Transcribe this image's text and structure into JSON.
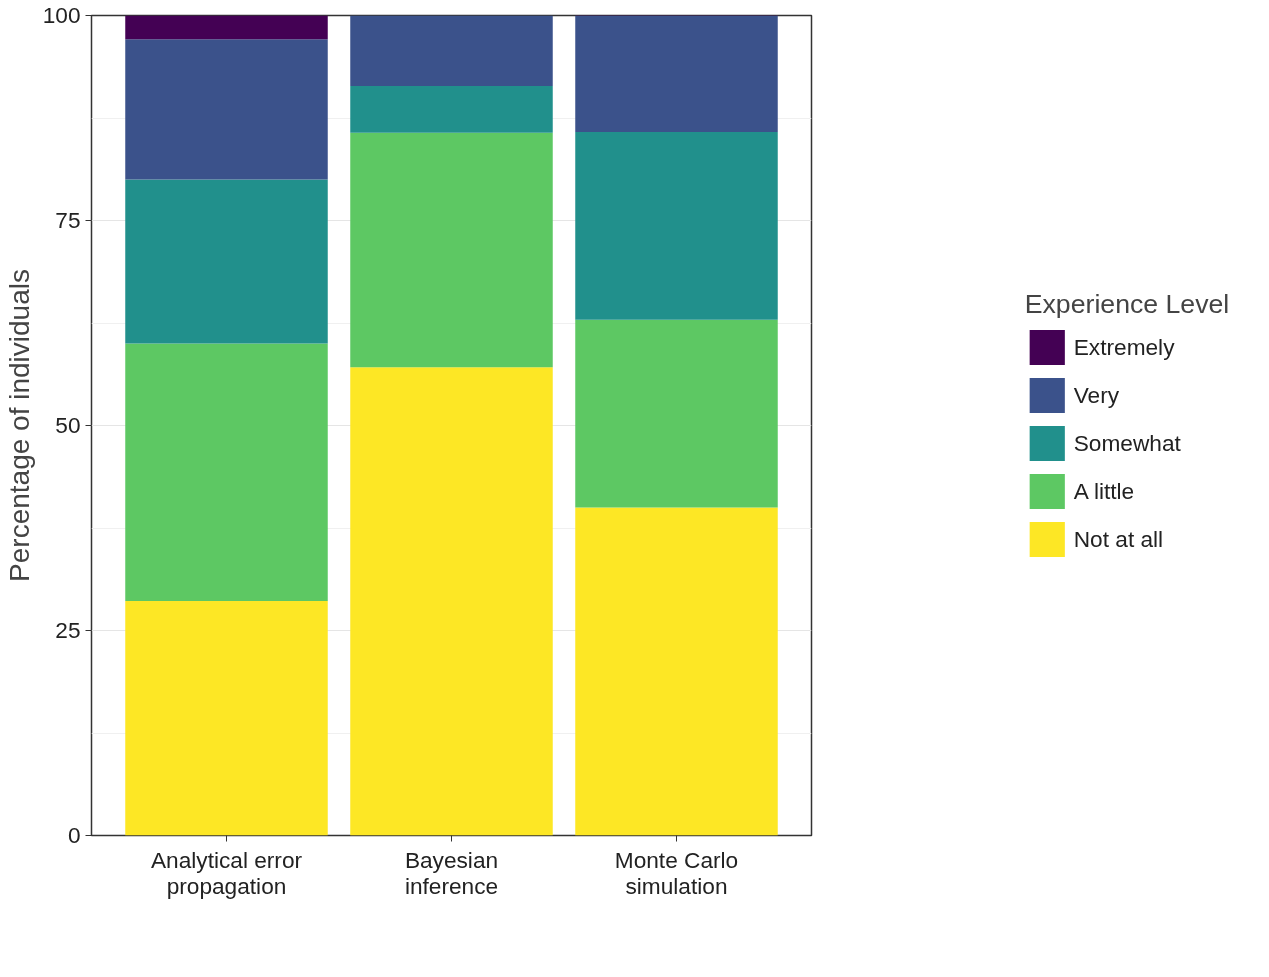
{
  "chart_data": {
    "type": "bar",
    "stacked": true,
    "ylabel": "Percentage of individuals",
    "legend_title": "Experience Level",
    "categories": [
      "Analytical error propagation",
      "Bayesian inference",
      "Monte Carlo simulation"
    ],
    "series": [
      {
        "name": "Not at all",
        "color": "#fde725",
        "values": [
          28.6,
          57.1,
          40.0
        ]
      },
      {
        "name": "A little",
        "color": "#5dc863",
        "values": [
          31.4,
          28.6,
          22.9
        ]
      },
      {
        "name": "Somewhat",
        "color": "#21908c",
        "values": [
          20.0,
          5.7,
          22.9
        ]
      },
      {
        "name": "Very",
        "color": "#3b528b",
        "values": [
          17.1,
          8.6,
          14.3
        ]
      },
      {
        "name": "Extremely",
        "color": "#440154",
        "values": [
          2.9,
          0,
          0
        ]
      }
    ],
    "ylim": [
      0,
      100
    ],
    "yticks": [
      0,
      25,
      50,
      75,
      100
    ],
    "grid": "y",
    "legend": "right"
  }
}
